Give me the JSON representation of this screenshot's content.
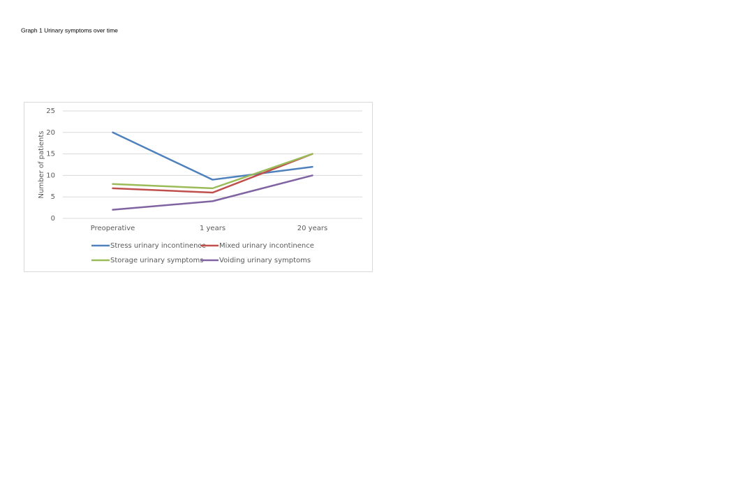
{
  "chart_data": {
    "type": "line",
    "title": "Graph 1 Urinary symptoms over time",
    "y_label": "Number of patients",
    "categories": [
      "Preoperative",
      "1  years",
      "20 years"
    ],
    "series": [
      {
        "name": "Stress urinary incontinence",
        "color": "#4f81bd",
        "values": [
          20,
          9,
          12
        ]
      },
      {
        "name": "Mixed urinary incontinence",
        "color": "#c0504d",
        "values": [
          7,
          6,
          15
        ]
      },
      {
        "name": "Storage urinary symptoms",
        "color": "#9bbb59",
        "values": [
          8,
          7,
          15
        ]
      },
      {
        "name": "Voiding urinary symptoms",
        "color": "#8064a2",
        "values": [
          2,
          4,
          10
        ]
      }
    ],
    "ylim": [
      0,
      25
    ],
    "yticks": [
      0,
      5,
      10,
      15,
      20,
      25
    ],
    "grid": true,
    "legend": "bottom"
  }
}
